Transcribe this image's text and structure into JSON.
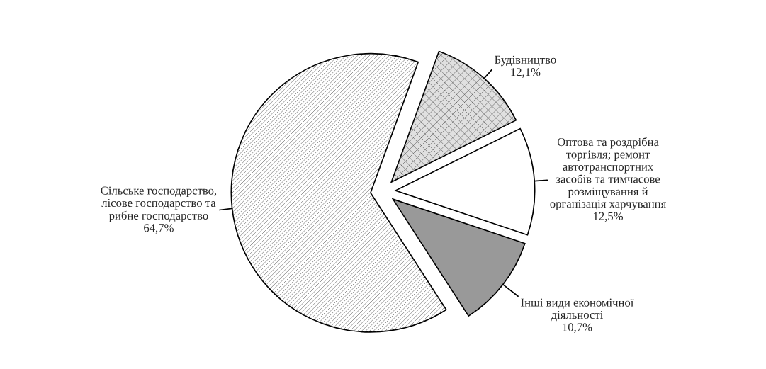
{
  "chart_data": {
    "type": "pie",
    "categories": [
      "Будівництво",
      "Оптова та роздрібна\nторгівля; ремонт\nавтотранспортних\nзасобів та тимчасове\nрозміщування й\nорганізація харчування",
      "Інші види економічної\nдіяльності",
      "Сільське господарство,\nлісове господарство та\nрибне господарство"
    ],
    "values": [
      12.1,
      12.5,
      10.7,
      64.7
    ],
    "value_labels": [
      "12,1%",
      "12,5%",
      "10,7%",
      "64,7%"
    ],
    "colors": [
      "#e0e0e0",
      "#ffffff",
      "#999999",
      "#ffffff"
    ]
  }
}
